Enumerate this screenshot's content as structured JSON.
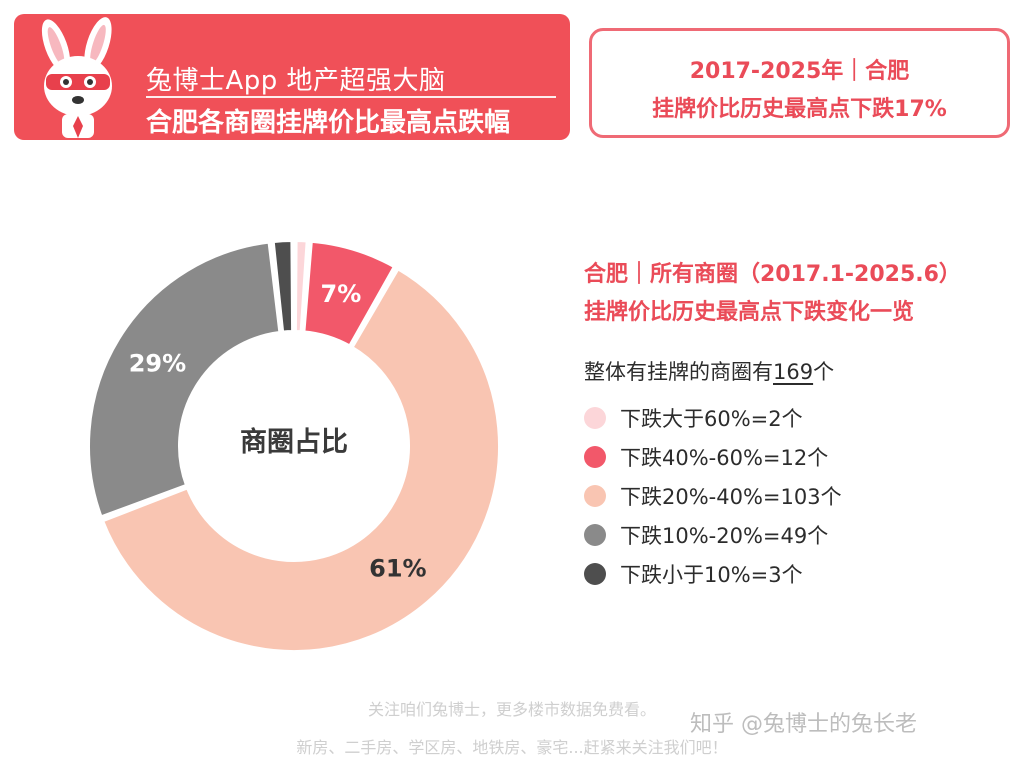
{
  "header": {
    "line1": "兔博士App 地产超强大脑",
    "line2": "合肥各商圈挂牌价比最高点跌幅"
  },
  "summary_box": {
    "line1": "2017-2025年｜合肥",
    "line2": "挂牌价比历史最高点下跌17%"
  },
  "chart_data": {
    "type": "pie",
    "center_label": "商圈占比",
    "title_line1": "合肥｜所有商圈（2017.1-2025.6）",
    "title_line2": "挂牌价比历史最高点下跌变化一览",
    "total_prefix": "整体有挂牌的商圈有",
    "total_count": "169",
    "total_suffix": "个",
    "slices": [
      {
        "label": "下跌大于60%=2个",
        "count": 2,
        "color": "#fcd6d9",
        "pct_label": ""
      },
      {
        "label": "下跌40%-60%=12个",
        "count": 12,
        "color": "#f2586a",
        "pct_label": "7%"
      },
      {
        "label": "下跌20%-40%=103个",
        "count": 103,
        "color": "#f9c5b2",
        "pct_label": "61%"
      },
      {
        "label": "下跌10%-20%=49个",
        "count": 49,
        "color": "#8a8a8a",
        "pct_label": "29%"
      },
      {
        "label": "下跌小于10%=3个",
        "count": 3,
        "color": "#4e4e4e",
        "pct_label": ""
      }
    ]
  },
  "footer": {
    "line1": "关注咱们兔博士，更多楼市数据免费看。",
    "line2": "新房、二手房、学区房、地铁房、豪宅...赶紧来关注我们吧！",
    "watermark": "知乎 @兔博士的兔长老"
  },
  "colors": {
    "brand_red": "#f05058",
    "title_red": "#ea4b58"
  }
}
